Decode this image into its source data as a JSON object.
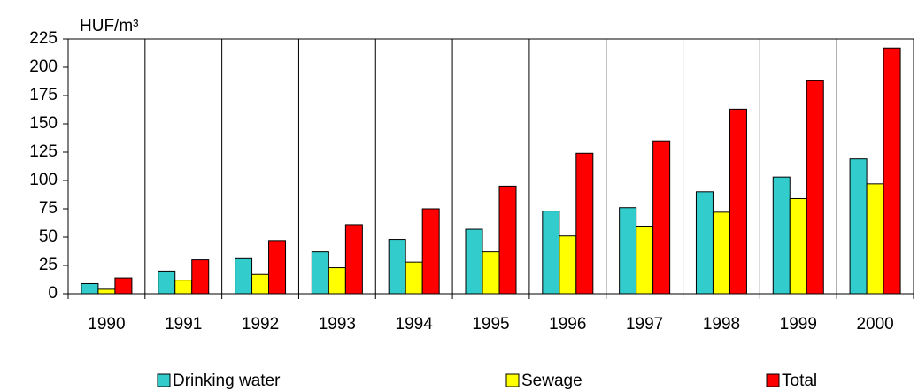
{
  "chart_data": {
    "type": "bar",
    "y_label": "HUF/m³",
    "categories": [
      "1990",
      "1991",
      "1992",
      "1993",
      "1994",
      "1995",
      "1996",
      "1997",
      "1998",
      "1999",
      "2000"
    ],
    "series": [
      {
        "name": "Drinking water",
        "color": "#33cccc",
        "values": [
          9,
          20,
          31,
          37,
          48,
          57,
          73,
          76,
          90,
          103,
          119
        ]
      },
      {
        "name": "Sewage",
        "color": "#ffff00",
        "values": [
          4,
          12,
          17,
          23,
          28,
          37,
          51,
          59,
          72,
          84,
          97
        ]
      },
      {
        "name": "Total",
        "color": "#ff0000",
        "values": [
          14,
          30,
          47,
          61,
          75,
          95,
          124,
          135,
          163,
          188,
          217
        ]
      }
    ],
    "ylim": [
      0,
      225
    ],
    "yticks": [
      0,
      25,
      50,
      75,
      100,
      125,
      150,
      175,
      200,
      225
    ]
  }
}
